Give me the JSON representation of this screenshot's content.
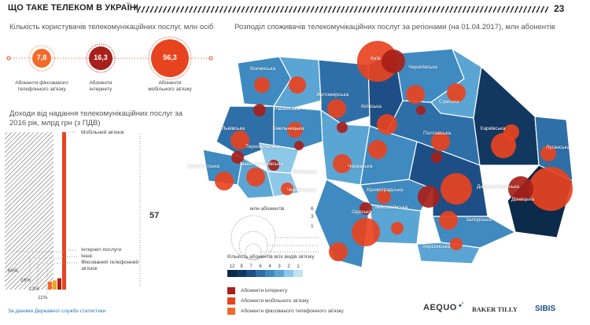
{
  "header": {
    "title": "ЩО ТАКЕ ТЕЛЕКОМ В УКРАЇНІ",
    "page_number": "23"
  },
  "users": {
    "heading": "Кількість користувачів телекомунікаційних послуг, млн осіб",
    "bubbles": [
      {
        "value": "7,8",
        "label": "Абоненти фіксованого телефонного зв'язку",
        "color": "#f26a2a"
      },
      {
        "value": "16,3",
        "label": "Абоненти інтернету",
        "color": "#a8201a"
      },
      {
        "value": "56,3",
        "label": "Абоненти мобільного зв'язку",
        "color": "#e8431f"
      }
    ]
  },
  "revenue": {
    "heading": "Доходи від надання телекомунікаційних послуг за 2016 рік, млрд грн (з ПДВ)",
    "total": "57",
    "labels": {
      "mobile": "Мобільний зв'язок",
      "internet": "Інтернет-послуги",
      "other": "Інше",
      "fixed": "Фіксований телефонний зв'язок"
    },
    "percents": [
      "60%",
      "16%",
      "13%",
      "11%"
    ]
  },
  "map": {
    "heading": "Розподіл споживачів телекомунікаційних послуг за регіонами (на 01.04.2017), млн абонентів",
    "regions": [
      "Волинська",
      "Рівненська",
      "Житомирська",
      "Київ",
      "Київська",
      "Чернігівська",
      "Сумська",
      "Львівська",
      "Хмельницька",
      "Тернопільська",
      "Вінницька",
      "Черкаська",
      "Полтавська",
      "Харківська",
      "Луганська",
      "Закарпатська",
      "Івано-Франківська",
      "Чернівецька",
      "Кіровоградська",
      "Дніпропетровська",
      "Донецька",
      "Одеська",
      "Миколаївська",
      "Запорізька",
      "Херсонська"
    ],
    "size_legend": {
      "title": "млн абонентів",
      "values": [
        "6",
        "3",
        "1"
      ]
    },
    "color_legend": {
      "title": "Кількість абонентів всіх видів зв'язку",
      "values": [
        "12",
        "8",
        "7",
        "6",
        "4",
        "3",
        "2",
        "1"
      ]
    },
    "type_legend": [
      "Абоненти інтернету",
      "Абоненти мобільного зв'язку",
      "Абоненти фіксованого телефонного зв'язку"
    ]
  },
  "footer": {
    "source": "За даними Державної служби статистики",
    "logos": [
      "AEQUO",
      "BAKER TILLY",
      "SIBIS"
    ]
  },
  "chart_data": {
    "type": "bar",
    "title": "Доходи від надання телекомунікаційних послуг за 2016 рік, млрд грн (з ПДВ)",
    "categories": [
      "Мобільний зв'язок",
      "Інтернет-послуги",
      "Інше",
      "Фіксований телефонний зв'язок"
    ],
    "values": [
      60,
      16,
      13,
      11
    ],
    "total": 57,
    "colors": [
      "#e8431f",
      "#a8201a",
      "#f6a21c",
      "#f26a2a"
    ]
  }
}
